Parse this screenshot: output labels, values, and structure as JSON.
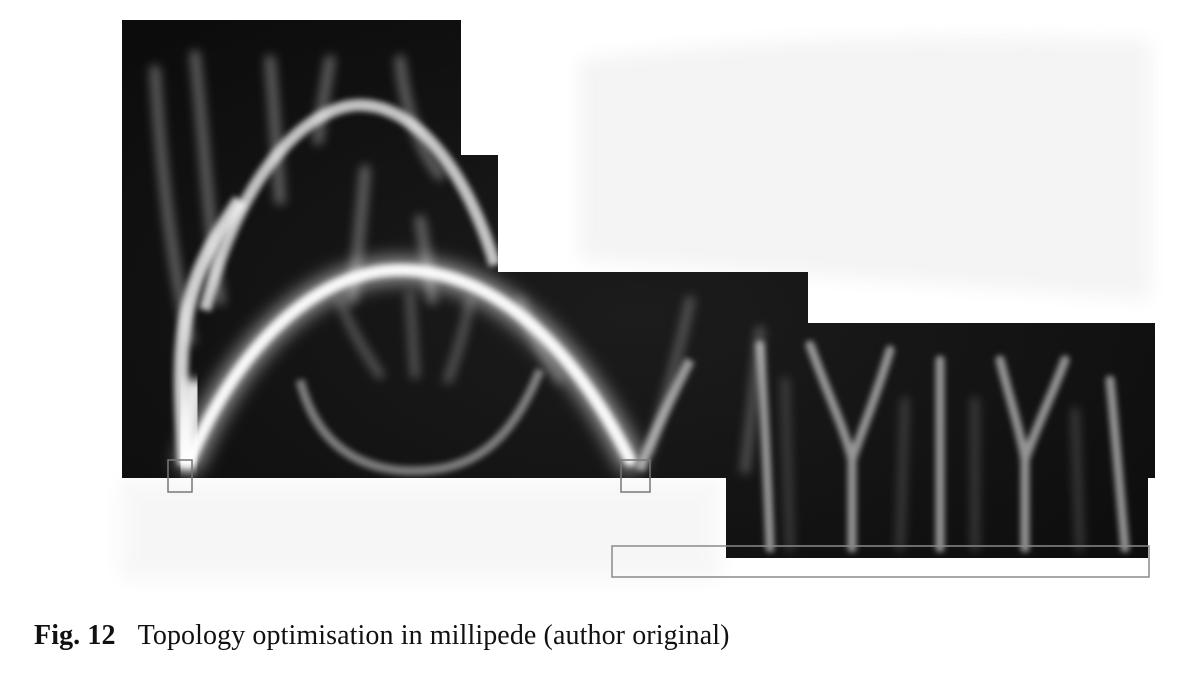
{
  "figure": {
    "colors": {
      "background": "#121212",
      "structure": "#ffffff",
      "support_outline": "#8a8a8a",
      "ghost": "#f2f2f2"
    }
  },
  "caption": {
    "label": "Fig. 12",
    "text": "Topology optimisation in millipede (author original)"
  }
}
